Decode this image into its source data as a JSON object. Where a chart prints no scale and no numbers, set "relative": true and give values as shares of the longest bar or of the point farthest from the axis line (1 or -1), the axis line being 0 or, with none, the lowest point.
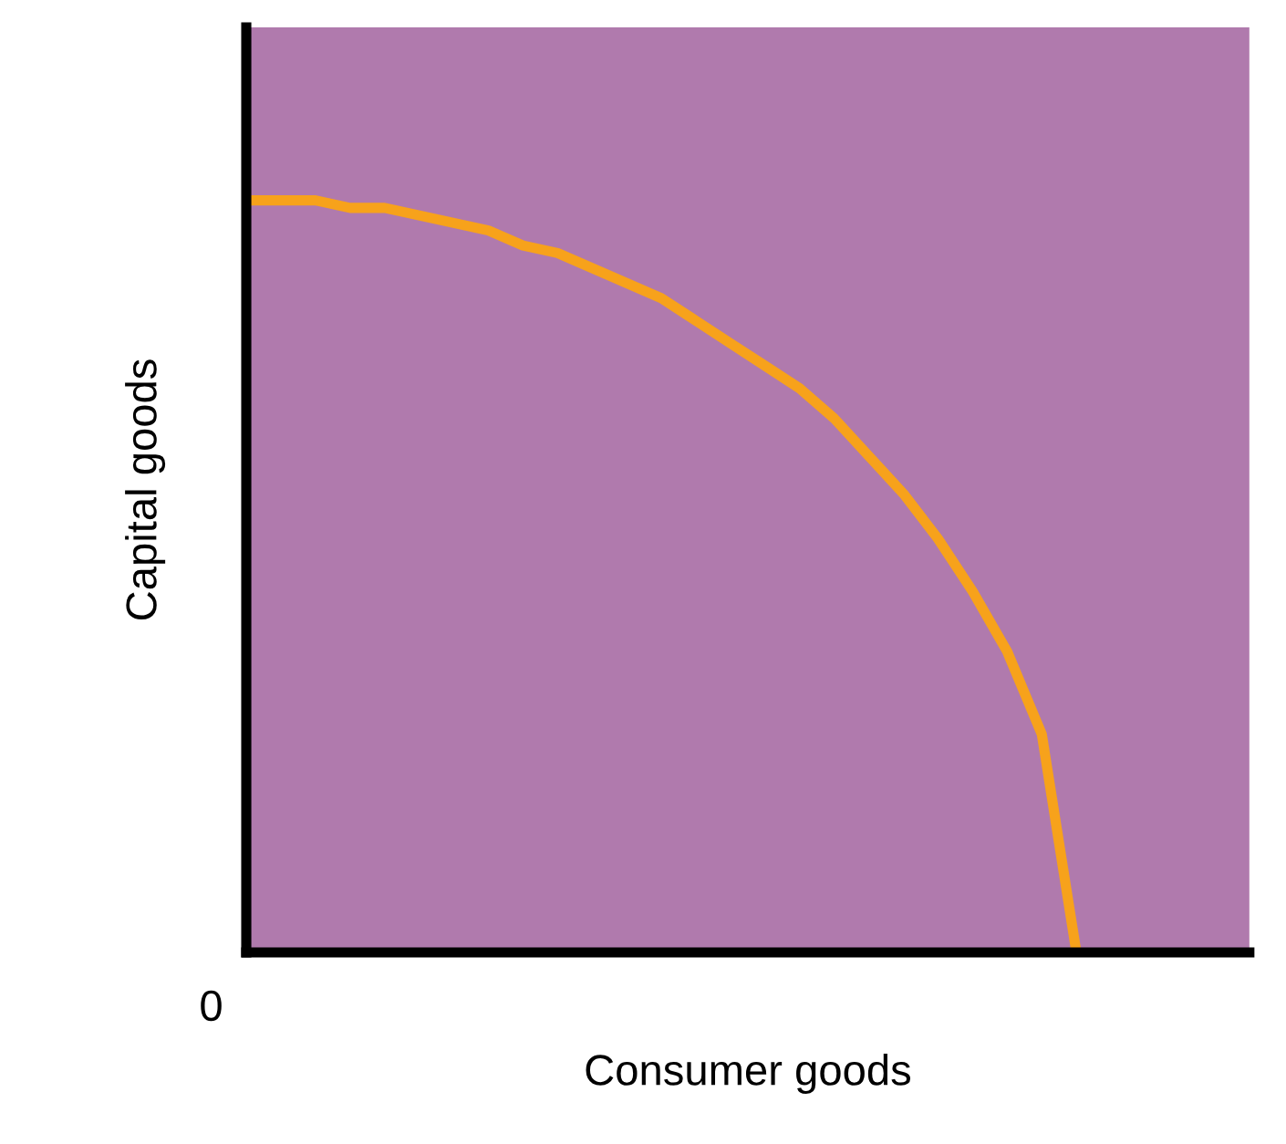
{
  "chart_data": {
    "type": "line",
    "relative": true,
    "xlabel": "Consumer goods",
    "ylabel": "Capital goods",
    "annotations": [
      "0"
    ],
    "tick_labels": false,
    "categories": [
      null,
      null,
      null,
      null,
      null,
      null,
      null,
      null,
      null,
      null,
      null,
      null,
      null,
      null,
      null,
      null,
      null,
      null,
      null,
      null,
      null,
      null,
      null,
      null,
      null,
      null,
      null,
      null,
      null,
      null
    ],
    "series": [
      {
        "color": "#f7a21b",
        "values": [
          1.0,
          1.0,
          1.0,
          0.99,
          0.99,
          0.98,
          0.97,
          0.96,
          0.94,
          0.93,
          0.91,
          0.89,
          0.87,
          0.84,
          0.81,
          0.78,
          0.75,
          0.71,
          0.66,
          0.61,
          0.55,
          0.48,
          0.4,
          0.29,
          0,
          null,
          null,
          null,
          null,
          null
        ]
      }
    ]
  }
}
